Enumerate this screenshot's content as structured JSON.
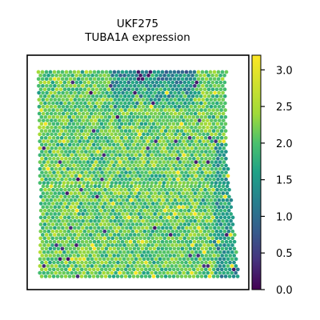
{
  "chart_data": {
    "type": "scatter",
    "title": "UKF275",
    "subtitle": "TUBA1A expression",
    "xlabel": "",
    "ylabel": "",
    "grid": false,
    "colorbar": {
      "colormap": "viridis",
      "range": [
        0.0,
        3.2
      ],
      "ticks": [
        0.0,
        0.5,
        1.0,
        1.5,
        2.0,
        2.5,
        3.0
      ],
      "tick_labels": [
        "0.0",
        "0.5",
        "1.0",
        "1.5",
        "2.0",
        "2.5",
        "3.0"
      ]
    },
    "regions": [
      {
        "description": "top-center band",
        "expression": 1.2
      },
      {
        "description": "right edge",
        "expression": 1.6
      },
      {
        "description": "bulk tissue",
        "expression": 2.1
      }
    ],
    "colors": {
      "low": "#440154",
      "mid": "#21918c",
      "high": "#fde725",
      "frame": "#000000"
    }
  }
}
